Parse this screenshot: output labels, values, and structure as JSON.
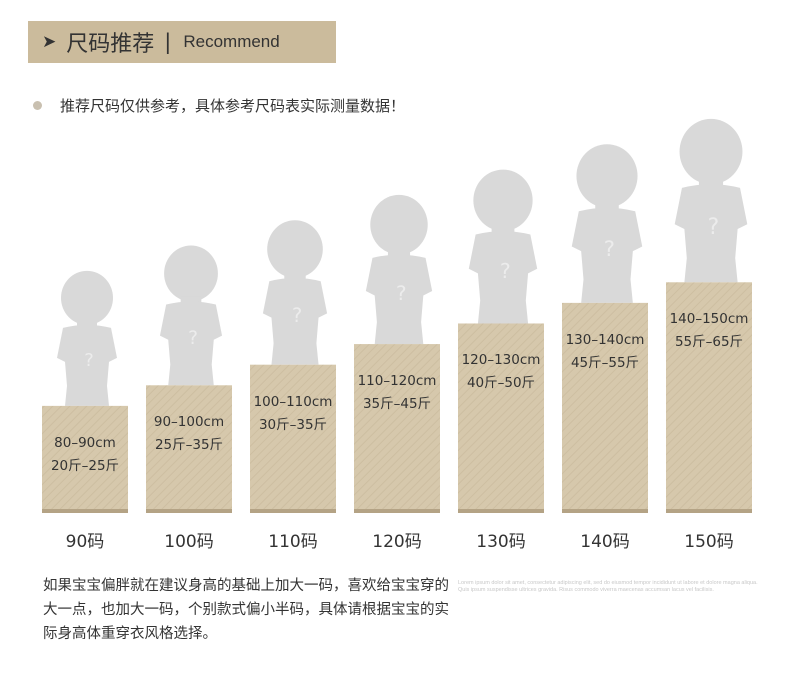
{
  "header": {
    "arrow": "➤",
    "title_cn": "尺码推荐",
    "separator": "|",
    "title_en": "Recommend"
  },
  "note": "推荐尺码仅供参考，具体参考尺码表实际测量数据！",
  "chart_data": {
    "type": "bar",
    "categories": [
      "90码",
      "100码",
      "110码",
      "120码",
      "130码",
      "140码",
      "150码"
    ],
    "rows": [
      {
        "size": "90码",
        "height_range": "80–90cm",
        "weight_range": "20斤–25斤"
      },
      {
        "size": "100码",
        "height_range": "90–100cm",
        "weight_range": "25斤–35斤"
      },
      {
        "size": "110码",
        "height_range": "100–110cm",
        "weight_range": "30斤–35斤"
      },
      {
        "size": "120码",
        "height_range": "110–120cm",
        "weight_range": "35斤–45斤"
      },
      {
        "size": "130码",
        "height_range": "120–130cm",
        "weight_range": "40斤–50斤"
      },
      {
        "size": "140码",
        "height_range": "130–140cm",
        "weight_range": "45斤–55斤"
      },
      {
        "size": "150码",
        "height_range": "140–150cm",
        "weight_range": "55斤–65斤"
      }
    ],
    "values": [
      90,
      100,
      110,
      120,
      130,
      140,
      150
    ],
    "ylim": [
      0,
      160
    ],
    "figure_mark": "?"
  },
  "colors": {
    "header_bg": "#cbbb9c",
    "block": "#d6c8ac",
    "block_base": "#b4a385",
    "silhouette": "#d9d9d9"
  },
  "footer": {
    "text": "如果宝宝偏胖就在建议身高的基础上加大一码，喜欢给宝宝穿的大一点，也加大一码，个别款式偏小半码，具体请根据宝宝的实际身高体重穿衣风格选择。",
    "lorem": "Lorem ipsum dolor sit amet, consectetur adipiscing elit, sed do eiusmod tempor incididunt ut labore et dolore magna aliqua. Quis ipsum suspendisse ultrices gravida. Risus commodo viverra maecenas accumsan lacus vel facilisis."
  }
}
